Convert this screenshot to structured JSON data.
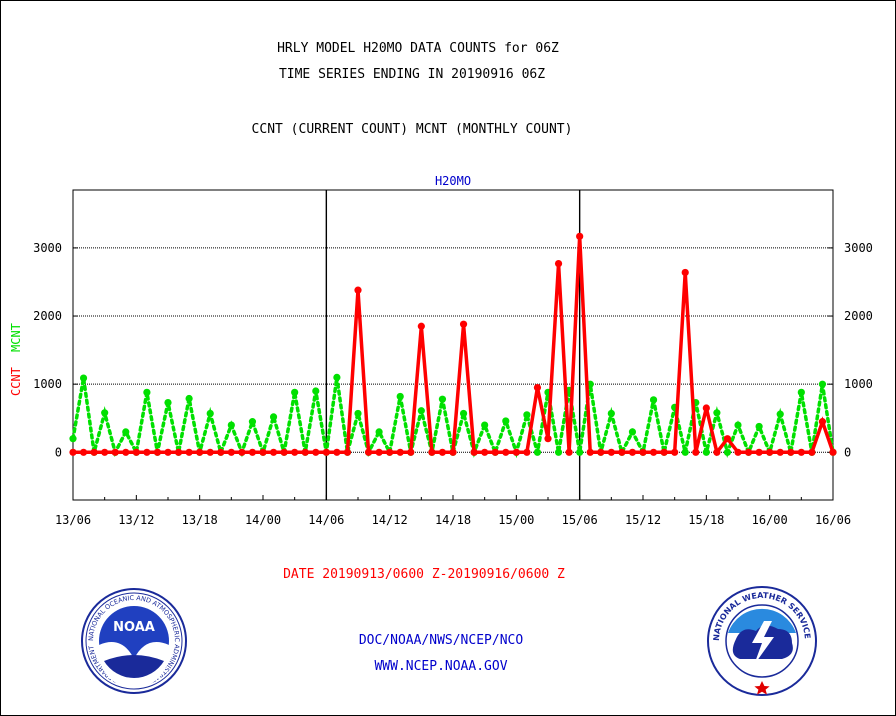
{
  "header": {
    "line1": "HRLY MODEL H20MO DATA COUNTS for 06Z",
    "line2": "TIME SERIES ENDING IN 20190916 06Z",
    "line3": "CCNT (CURRENT COUNT) MCNT (MONTHLY COUNT)"
  },
  "footer": {
    "date_range": "DATE 20190913/0600 Z-20190916/0600 Z",
    "org": "DOC/NOAA/NWS/NCEP/NCO",
    "url": "WWW.NCEP.NOAA.GOV",
    "noaa_logo_text": "NOAA",
    "noaa_ring_text": "NATIONAL OCEANIC AND ATMOSPHERIC ADMINISTRATION · U.S. DEPARTMENT OF COMMERCE",
    "nws_ring_text": "NATIONAL WEATHER SERVICE"
  },
  "colors": {
    "ccnt": "#ff0000",
    "mcnt": "#00e000",
    "text": "#000000",
    "title": "#0000cc",
    "date": "#ff0000",
    "links": "#0000cc"
  },
  "chart_data": {
    "type": "line",
    "title": "H20MO",
    "ylabel_parts": [
      {
        "text": "CCNT",
        "color": "#ff0000"
      },
      {
        "text": "MCNT",
        "color": "#00e000"
      }
    ],
    "x_start_hour": 0,
    "x_end_hour": 72,
    "x_ticks": [
      {
        "hour": 0,
        "label": "13/06"
      },
      {
        "hour": 6,
        "label": "13/12"
      },
      {
        "hour": 12,
        "label": "13/18"
      },
      {
        "hour": 18,
        "label": "14/00"
      },
      {
        "hour": 24,
        "label": "14/06"
      },
      {
        "hour": 30,
        "label": "14/12"
      },
      {
        "hour": 36,
        "label": "14/18"
      },
      {
        "hour": 42,
        "label": "15/00"
      },
      {
        "hour": 48,
        "label": "15/06"
      },
      {
        "hour": 54,
        "label": "15/12"
      },
      {
        "hour": 60,
        "label": "15/18"
      },
      {
        "hour": 66,
        "label": "16/00"
      },
      {
        "hour": 72,
        "label": "16/06"
      }
    ],
    "day_lines": [
      24,
      48
    ],
    "ylim": [
      -700,
      3850
    ],
    "y_ticks": [
      0,
      1000,
      2000,
      3000
    ],
    "grid": true,
    "series": [
      {
        "name": "CCNT",
        "color": "#ff0000",
        "style": "solid",
        "values": [
          0,
          0,
          0,
          0,
          0,
          0,
          0,
          0,
          0,
          0,
          0,
          0,
          0,
          0,
          0,
          0,
          0,
          0,
          0,
          0,
          0,
          0,
          0,
          0,
          0,
          0,
          0,
          2380,
          0,
          0,
          0,
          0,
          0,
          1850,
          0,
          0,
          0,
          1880,
          0,
          0,
          0,
          0,
          0,
          0,
          950,
          200,
          2770,
          0,
          3170,
          0,
          0,
          0,
          0,
          0,
          0,
          0,
          0,
          0,
          2640,
          0,
          650,
          0,
          200,
          0,
          0,
          0,
          0,
          0,
          0,
          0,
          0,
          450,
          0
        ]
      },
      {
        "name": "MCNT",
        "color": "#00e000",
        "style": "dotted",
        "values": [
          200,
          1090,
          0,
          580,
          0,
          300,
          0,
          880,
          0,
          730,
          0,
          790,
          0,
          570,
          0,
          400,
          0,
          450,
          0,
          520,
          0,
          880,
          0,
          900,
          0,
          1100,
          0,
          570,
          0,
          300,
          0,
          820,
          0,
          610,
          0,
          780,
          0,
          570,
          0,
          400,
          0,
          460,
          0,
          550,
          0,
          880,
          0,
          910,
          0,
          1000,
          0,
          570,
          0,
          300,
          0,
          770,
          0,
          660,
          0,
          730,
          0,
          580,
          0,
          400,
          0,
          380,
          0,
          560,
          0,
          880,
          0,
          1000,
          0
        ]
      }
    ]
  }
}
